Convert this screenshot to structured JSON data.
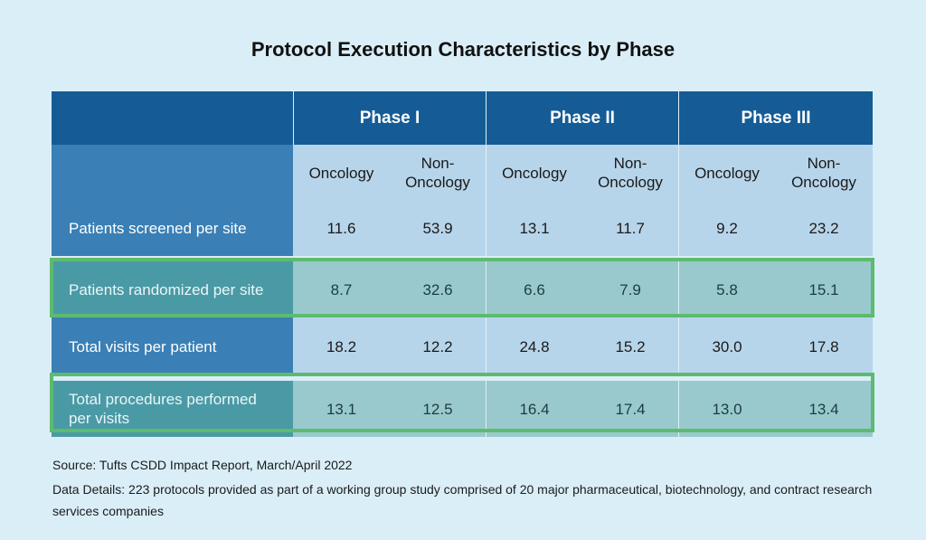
{
  "title": "Protocol Execution Characteristics by Phase",
  "chart_data": {
    "type": "table",
    "title": "Protocol Execution Characteristics by Phase",
    "phases": [
      "Phase I",
      "Phase II",
      "Phase III"
    ],
    "columns": [
      "Oncology",
      "Non-\nOncology",
      "Oncology",
      "Non-\nOncology",
      "Oncology",
      "Non-\nOncology"
    ],
    "rows": [
      {
        "label": "Patients screened per site",
        "values": [
          "11.6",
          "53.9",
          "13.1",
          "11.7",
          "9.2",
          "23.2"
        ],
        "highlighted": false
      },
      {
        "label": "Patients randomized per site",
        "values": [
          "8.7",
          "32.6",
          "6.6",
          "7.9",
          "5.8",
          "15.1"
        ],
        "highlighted": true
      },
      {
        "label": "Total visits per patient",
        "values": [
          "18.2",
          "12.2",
          "24.8",
          "15.2",
          "30.0",
          "17.8"
        ],
        "highlighted": false
      },
      {
        "label": "Total procedures performed per visits",
        "values": [
          "13.1",
          "12.5",
          "16.4",
          "17.4",
          "13.0",
          "13.4"
        ],
        "highlighted": true
      }
    ],
    "highlight_color": "#5dbb6f"
  },
  "footer": {
    "source": "Source: Tufts CSDD Impact Report, March/April 2022",
    "details": "Data Details: 223 protocols provided as part of a working group study comprised of 20 major pharmaceutical, biotechnology, and contract research services companies"
  },
  "colors": {
    "background": "#daeef8",
    "header": "#155c96",
    "label_column": "#3a7fb5",
    "data_cells": "#b7d5ea",
    "highlight_label": "#4a9aa6",
    "highlight_cells": "#99c9cd"
  }
}
